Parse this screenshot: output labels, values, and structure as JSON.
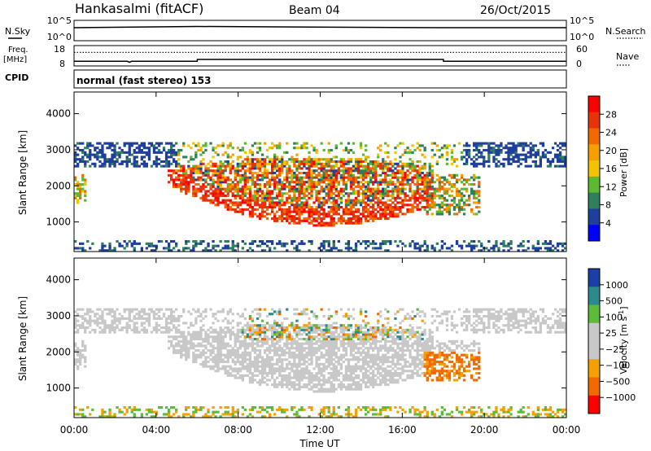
{
  "header": {
    "station": "Hankasalmi (fitACF)",
    "beam": "Beam 04",
    "date": "26/Oct/2015"
  },
  "left_labels": {
    "nsky": "N.Sky",
    "freq": "Freq.",
    "freq_unit": "[MHz]",
    "cpid": "CPID"
  },
  "right_labels": {
    "nsearch": "N.Search",
    "nave": "Nave"
  },
  "cpid_text": "normal (fast stereo) 153",
  "chart_data": [
    {
      "type": "line",
      "title": "",
      "ylabel": "N.Sky",
      "ylim_labels": [
        "10^0",
        "10^5"
      ],
      "right_ylabel": "N.Search",
      "right_ylim_labels": [
        "10^0",
        "10^5"
      ],
      "x": [
        0,
        6,
        18,
        24
      ],
      "series": [
        {
          "name": "N.Sky",
          "values": [
            3.2,
            3.5,
            3.2,
            3.2
          ]
        }
      ]
    },
    {
      "type": "line",
      "ylabel": "Freq. [MHz]",
      "yticks": [
        "8",
        "18"
      ],
      "ylim": [
        8,
        18
      ],
      "right_ylabel": "Nave",
      "right_yticks": [
        "0",
        "60"
      ],
      "right_ylim": [
        0,
        60
      ],
      "x": [
        0,
        2.6,
        2.7,
        2.8,
        6,
        6.01,
        18,
        18.01,
        24
      ],
      "series": [
        {
          "name": "Freq.",
          "values": [
            10.3,
            10.3,
            9.8,
            10.3,
            10.3,
            11.2,
            11.2,
            10.3,
            10.3
          ]
        },
        {
          "name": "Nave",
          "values": [
            40,
            40,
            40,
            40,
            40,
            40,
            40,
            40,
            40
          ]
        }
      ]
    },
    {
      "type": "heatmap",
      "panel": "power",
      "ylabel": "Slant Range [km]",
      "yticks": [
        1000,
        2000,
        3000,
        4000
      ],
      "ylim": [
        180,
        4600
      ],
      "xlim": [
        0,
        24
      ],
      "colorbar_label": "Power [dB]",
      "colorbar_ticks": [
        "4",
        "8",
        "12",
        "16",
        "20",
        "24",
        "28"
      ],
      "colors": [
        "#0000ff",
        "#1f3f9c",
        "#2e7f5a",
        "#5db832",
        "#f2c300",
        "#f5a000",
        "#f06a00",
        "#e8320a",
        "#ff0000"
      ]
    },
    {
      "type": "heatmap",
      "panel": "velocity",
      "ylabel": "Slant Range [km]",
      "yticks": [
        1000,
        2000,
        3000,
        4000
      ],
      "ylim": [
        180,
        4600
      ],
      "xlim": [
        0,
        24
      ],
      "xticks": [
        "00:00",
        "04:00",
        "08:00",
        "12:00",
        "16:00",
        "20:00",
        "00:00"
      ],
      "xlabel": "Time UT",
      "colorbar_label": "Velocity [m s",
      "colorbar_label_sup": "-1",
      "colorbar_label_end": "]",
      "colorbar_ticks": [
        "1000",
        "500",
        "100",
        "25",
        "−25",
        "−100",
        "−500",
        "−1000"
      ],
      "colors": [
        "#1a3fa8",
        "#2d8a8a",
        "#5dbb3a",
        "#c8c8c8",
        "#c8c8c8",
        "#f5a000",
        "#f06a00",
        "#ff0000"
      ]
    }
  ]
}
